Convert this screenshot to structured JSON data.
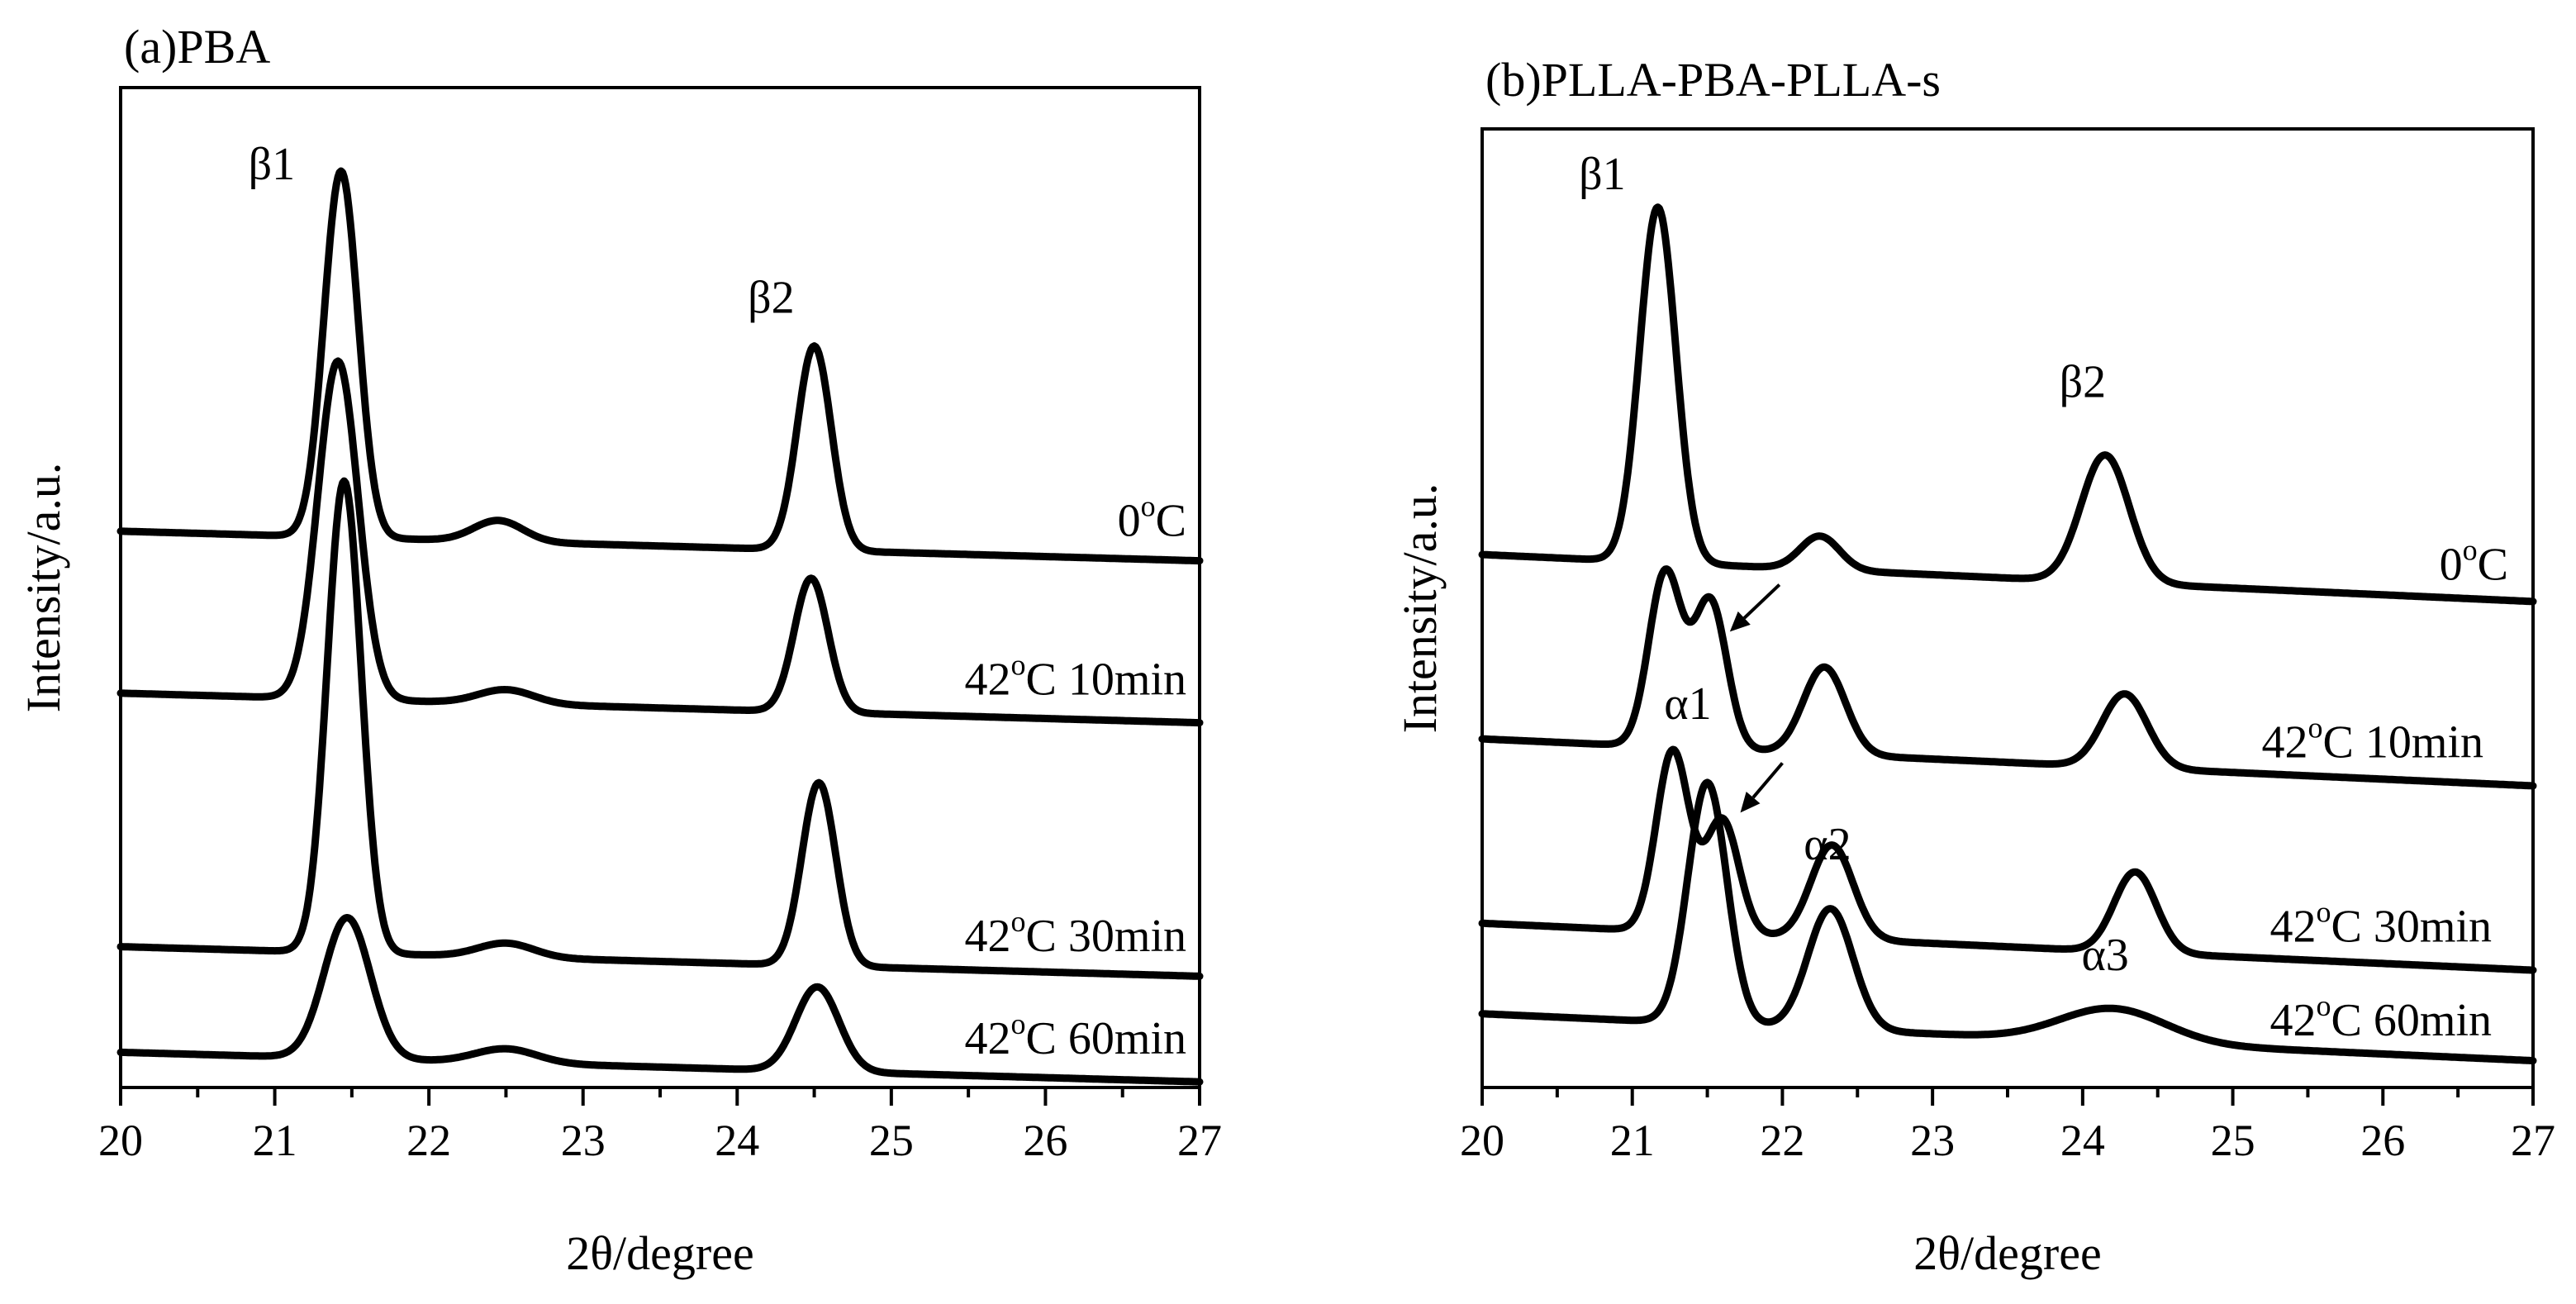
{
  "chart_data": [
    {
      "panel": "a",
      "type": "line",
      "title": "(a)PBA",
      "xlabel": "2θ/degree",
      "ylabel": "Intensity/a.u.",
      "xlim": [
        20,
        27
      ],
      "xticks": [
        20,
        21,
        22,
        23,
        24,
        25,
        26,
        27
      ],
      "y_ticks_shown": false,
      "series": [
        {
          "name": "0°C",
          "label": {
            "main": "0",
            "sup": "o",
            "tail": "C"
          },
          "offset": 0.62,
          "baseline": [
            0.02,
            -0.006
          ],
          "peaks": [
            {
              "x": 21.43,
              "h": 0.52,
              "w": 0.11
            },
            {
              "x": 22.45,
              "h": 0.03,
              "w": 0.16
            },
            {
              "x": 24.5,
              "h": 0.29,
              "w": 0.11
            }
          ]
        },
        {
          "name": "42°C 10min",
          "label": {
            "main": "42",
            "sup": "o",
            "tail": "C 10min"
          },
          "offset": 0.39,
          "baseline": [
            0.02,
            -0.006
          ],
          "peaks": [
            {
              "x": 21.41,
              "h": 0.48,
              "w": 0.13
            },
            {
              "x": 22.5,
              "h": 0.02,
              "w": 0.18
            },
            {
              "x": 24.48,
              "h": 0.19,
              "w": 0.11
            }
          ]
        },
        {
          "name": "42°C 30min",
          "label": {
            "main": "42",
            "sup": "o",
            "tail": "C 30min"
          },
          "offset": 0.03,
          "baseline": [
            0.02,
            -0.006
          ],
          "peaks": [
            {
              "x": 21.45,
              "h": 0.67,
              "w": 0.11
            },
            {
              "x": 22.5,
              "h": 0.02,
              "w": 0.18
            },
            {
              "x": 24.53,
              "h": 0.26,
              "w": 0.11
            }
          ]
        },
        {
          "name": "42°C 60min",
          "label": {
            "main": "42",
            "sup": "o",
            "tail": "C 60min"
          },
          "offset": -0.12,
          "baseline": [
            0.02,
            -0.006
          ],
          "peaks": [
            {
              "x": 21.47,
              "h": 0.2,
              "w": 0.15
            },
            {
              "x": 22.5,
              "h": 0.02,
              "w": 0.2
            },
            {
              "x": 24.52,
              "h": 0.12,
              "w": 0.14
            }
          ]
        }
      ],
      "annotations": [
        {
          "text": "β1",
          "x": 20.98,
          "y": 1.14
        },
        {
          "text": "β2",
          "x": 24.22,
          "y": 0.95
        }
      ]
    },
    {
      "panel": "b",
      "type": "line",
      "title": "(b)PLLA-PBA-PLLA-s",
      "xlabel": "2θ/degree",
      "ylabel": "Intensity/a.u.",
      "xlim": [
        20,
        27
      ],
      "xticks": [
        20,
        21,
        22,
        23,
        24,
        25,
        26,
        27
      ],
      "y_ticks_shown": false,
      "series": [
        {
          "name": "0°C",
          "label": {
            "main": "0",
            "sup": "o",
            "tail": "C"
          },
          "offset": 0.655,
          "baseline": [
            0.04,
            -0.01
          ],
          "peaks": [
            {
              "x": 21.17,
              "h": 0.53,
              "w": 0.12
            },
            {
              "x": 22.25,
              "h": 0.05,
              "w": 0.13
            },
            {
              "x": 24.15,
              "h": 0.19,
              "w": 0.16
            }
          ]
        },
        {
          "name": "42°C 10min",
          "label": {
            "main": "42",
            "sup": "o",
            "tail": "C 10min"
          },
          "offset": 0.38,
          "baseline": [
            0.04,
            -0.01
          ],
          "peaks": [
            {
              "x": 21.22,
              "h": 0.26,
              "w": 0.11
            },
            {
              "x": 21.52,
              "h": 0.22,
              "w": 0.11
            },
            {
              "x": 22.28,
              "h": 0.13,
              "w": 0.14
            },
            {
              "x": 24.28,
              "h": 0.11,
              "w": 0.15
            }
          ]
        },
        {
          "name": "42°C 30min",
          "label": {
            "main": "42",
            "sup": "o",
            "tail": "C 30min"
          },
          "offset": 0.105,
          "baseline": [
            0.04,
            -0.01
          ],
          "peaks": [
            {
              "x": 21.27,
              "h": 0.27,
              "w": 0.11
            },
            {
              "x": 21.6,
              "h": 0.17,
              "w": 0.11
            },
            {
              "x": 22.33,
              "h": 0.14,
              "w": 0.14
            },
            {
              "x": 24.35,
              "h": 0.12,
              "w": 0.14
            }
          ]
        },
        {
          "name": "42°C 60min",
          "label": {
            "main": "42",
            "sup": "o",
            "tail": "C 60min"
          },
          "offset": -0.03,
          "baseline": [
            0.04,
            -0.01
          ],
          "peaks": [
            {
              "x": 21.5,
              "h": 0.36,
              "w": 0.13
            },
            {
              "x": 22.32,
              "h": 0.18,
              "w": 0.15
            },
            {
              "x": 24.2,
              "h": 0.05,
              "w": 0.35
            }
          ]
        }
      ],
      "annotations": [
        {
          "text": "β1",
          "x": 20.8,
          "y": 1.24
        },
        {
          "text": "β2",
          "x": 24.0,
          "y": 0.93
        },
        {
          "text": "α1",
          "x": 21.37,
          "y": 0.45
        },
        {
          "text": "α2",
          "x": 22.3,
          "y": 0.24
        },
        {
          "text": "α3",
          "x": 24.15,
          "y": 0.075
        }
      ],
      "arrows": [
        {
          "from": [
            21.98,
            0.65
          ],
          "to": [
            21.65,
            0.58
          ]
        },
        {
          "from": [
            22.0,
            0.384
          ],
          "to": [
            21.72,
            0.31
          ]
        }
      ]
    }
  ]
}
